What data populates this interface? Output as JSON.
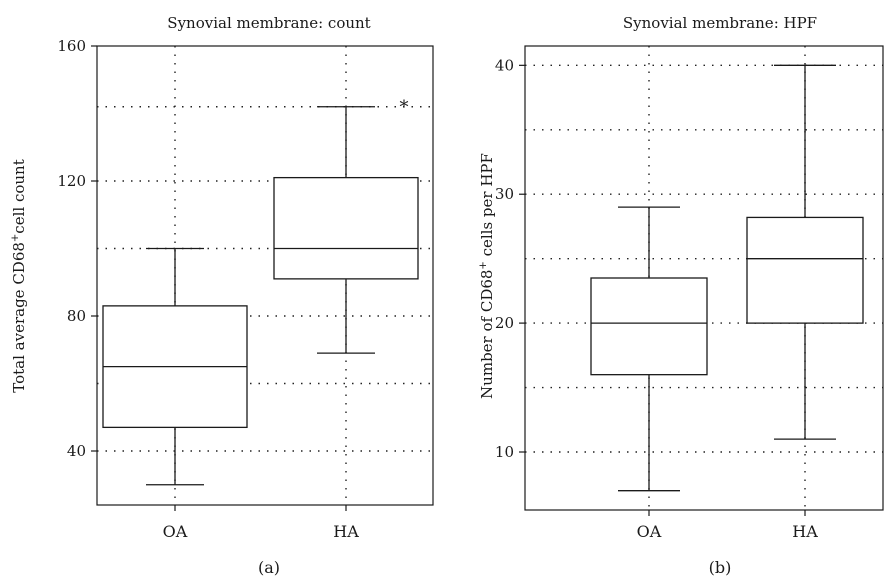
{
  "chart_data": [
    {
      "type": "boxplot",
      "panel_label": "(a)",
      "title": "Synovial membrane: count",
      "ylabel": "Total average CD68+cell count",
      "ylabel_parts": [
        "Total average CD68",
        "+",
        "cell count"
      ],
      "xlabel": "",
      "categories": [
        "OA",
        "HA"
      ],
      "ylim": [
        24,
        160
      ],
      "yticks": [
        40,
        80,
        120,
        160
      ],
      "gridlines_y": [
        40,
        60,
        80,
        100,
        120,
        142
      ],
      "grid": true,
      "boxes": [
        {
          "name": "OA",
          "min": 30,
          "q1": 47,
          "median": 65,
          "q3": 83,
          "max": 100
        },
        {
          "name": "HA",
          "min": 69,
          "q1": 91,
          "median": 100,
          "q3": 121,
          "max": 142
        }
      ],
      "outliers": [
        {
          "category": "HA",
          "symbol": "*"
        }
      ]
    },
    {
      "type": "boxplot",
      "panel_label": "(b)",
      "title": "Synovial membrane: HPF",
      "ylabel": "Number of CD68+ cells per HPF",
      "ylabel_parts": [
        "Number of CD68",
        "+",
        " cells per HPF"
      ],
      "xlabel": "",
      "categories": [
        "OA",
        "HA"
      ],
      "ylim": [
        5.5,
        41.5
      ],
      "yticks": [
        10,
        20,
        30,
        40
      ],
      "gridlines_y": [
        10,
        15,
        20,
        25,
        30,
        35,
        40
      ],
      "grid": true,
      "boxes": [
        {
          "name": "OA",
          "min": 7,
          "q1": 16,
          "median": 20,
          "q3": 23.5,
          "max": 29
        },
        {
          "name": "HA",
          "min": 11,
          "q1": 20,
          "median": 25,
          "q3": 28.2,
          "max": 40
        }
      ],
      "outliers": []
    }
  ]
}
